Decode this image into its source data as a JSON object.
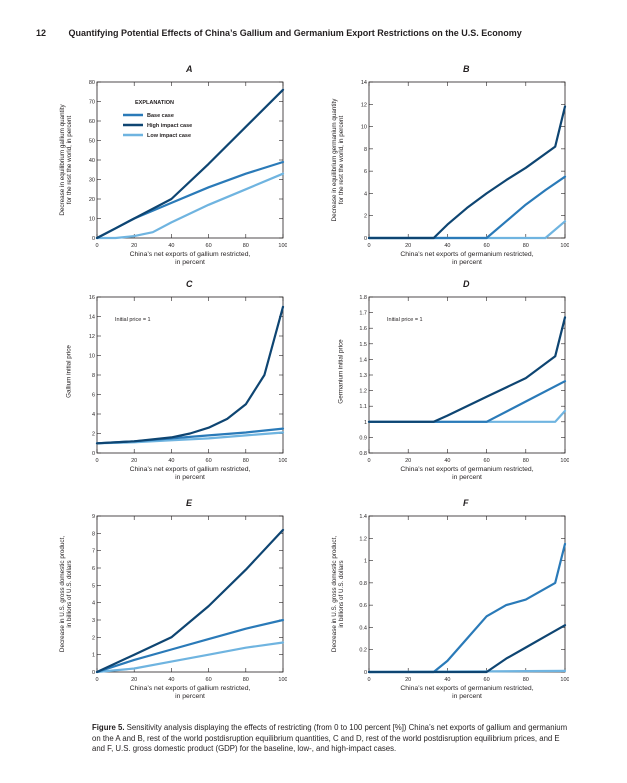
{
  "header": {
    "page_number": "12",
    "title": "Quantifying Potential Effects of China’s Gallium and Germanium Export Restrictions on the U.S. Economy"
  },
  "colors": {
    "base": "#2a7ab8",
    "high": "#0e4572",
    "low": "#6fb4e0"
  },
  "legend": {
    "title": "EXPLANATION",
    "items": [
      "Base case",
      "High impact case",
      "Low impact case"
    ]
  },
  "panels": {
    "A": {
      "letter": "A",
      "ylabel_lines": [
        "Decrease in equilibrium gallium quantity",
        "for the rest the world, in percent"
      ],
      "xlabel_lines": [
        "China’s net exports of gallium restricted,",
        "in percent"
      ]
    },
    "B": {
      "letter": "B",
      "ylabel_lines": [
        "Decrease in equilibrium germanium quantity",
        "for the rest the world, in percent"
      ],
      "xlabel_lines": [
        "China’s net exports of germanium restricted,",
        "in percent"
      ]
    },
    "C": {
      "letter": "C",
      "ylabel_lines": [
        "Gallium initial price"
      ],
      "xlabel_lines": [
        "China’s net exports of gallium restricted,",
        "in percent"
      ],
      "annotation": "Initial price = 1"
    },
    "D": {
      "letter": "D",
      "ylabel_lines": [
        "Germanium initial price"
      ],
      "xlabel_lines": [
        "China’s net exports of germanium restricted,",
        "in percent"
      ],
      "annotation": "Initial price = 1"
    },
    "E": {
      "letter": "E",
      "ylabel_lines": [
        "Decrease in U.S. gross domestic product,",
        "in billions of U.S. dollars"
      ],
      "xlabel_lines": [
        "China’s net exports of gallium restricted,",
        "in percent"
      ]
    },
    "F": {
      "letter": "F",
      "ylabel_lines": [
        "Decrease in U.S. gross domestic product,",
        "in billions of U.S. dollars"
      ],
      "xlabel_lines": [
        "China’s net exports of germanium restricted,",
        "in percent"
      ]
    }
  },
  "caption": {
    "label": "Figure 5.",
    "text": "Sensitivity analysis displaying the effects of restricting (from 0 to 100 percent [%]) China’s net exports of gallium and germanium on the A and B, rest of the world postdisruption equilibrium quantities, C and D, rest of the world postdisruption equilibrium prices, and E and F, U.S. gross domestic product (GDP) for the baseline, low-, and high-impact cases."
  },
  "chart_data": [
    {
      "panel": "A",
      "type": "line",
      "xlim": [
        0,
        100
      ],
      "ylim": [
        0,
        80
      ],
      "xticks": [
        0,
        20,
        40,
        60,
        80,
        100
      ],
      "yticks": [
        0,
        10,
        20,
        30,
        40,
        50,
        60,
        70,
        80
      ],
      "ytick_labels": [
        "0",
        "10",
        "20",
        "30",
        "40",
        "50",
        "60",
        "70",
        "80"
      ],
      "series": [
        {
          "name": "Base case",
          "color": "base",
          "x": [
            0,
            10,
            20,
            40,
            60,
            80,
            100
          ],
          "y": [
            0,
            5,
            10,
            18,
            26,
            33,
            39
          ]
        },
        {
          "name": "High impact case",
          "color": "high",
          "x": [
            0,
            10,
            20,
            40,
            60,
            80,
            100
          ],
          "y": [
            0,
            5,
            10,
            20,
            38,
            57,
            76
          ]
        },
        {
          "name": "Low impact case",
          "color": "low",
          "x": [
            0,
            10,
            20,
            30,
            40,
            60,
            80,
            100
          ],
          "y": [
            0,
            0,
            1,
            3,
            8,
            17,
            25,
            33
          ]
        }
      ]
    },
    {
      "panel": "B",
      "type": "line",
      "xlim": [
        0,
        100
      ],
      "ylim": [
        0,
        14
      ],
      "xticks": [
        0,
        20,
        40,
        60,
        80,
        100
      ],
      "yticks": [
        0,
        2,
        4,
        6,
        8,
        10,
        12,
        14
      ],
      "ytick_labels": [
        "0",
        "2",
        "4",
        "6",
        "8",
        "10",
        "12",
        "14"
      ],
      "series": [
        {
          "name": "Base case",
          "color": "base",
          "x": [
            0,
            60,
            70,
            80,
            90,
            100
          ],
          "y": [
            0,
            0,
            1.5,
            3,
            4.3,
            5.5
          ]
        },
        {
          "name": "High impact case",
          "color": "high",
          "x": [
            0,
            33,
            40,
            50,
            60,
            70,
            80,
            95,
            100
          ],
          "y": [
            0,
            0,
            1.2,
            2.7,
            4,
            5.2,
            6.3,
            8.2,
            11.8
          ]
        },
        {
          "name": "Low impact case",
          "color": "low",
          "x": [
            0,
            90,
            100
          ],
          "y": [
            0,
            0,
            1.5
          ]
        }
      ]
    },
    {
      "panel": "C",
      "type": "line",
      "xlim": [
        0,
        100
      ],
      "ylim": [
        0,
        16
      ],
      "xticks": [
        0,
        20,
        40,
        60,
        80,
        100
      ],
      "yticks": [
        0,
        2,
        4,
        6,
        8,
        10,
        12,
        14,
        16
      ],
      "ytick_labels": [
        "0",
        "2",
        "4",
        "6",
        "8",
        "10",
        "12",
        "14",
        "16"
      ],
      "series": [
        {
          "name": "Base case",
          "color": "base",
          "x": [
            0,
            20,
            40,
            60,
            80,
            100
          ],
          "y": [
            1,
            1.2,
            1.5,
            1.8,
            2.1,
            2.5
          ]
        },
        {
          "name": "High impact case",
          "color": "high",
          "x": [
            0,
            20,
            40,
            50,
            60,
            70,
            80,
            90,
            100
          ],
          "y": [
            1,
            1.2,
            1.6,
            2,
            2.6,
            3.5,
            5,
            8,
            15
          ]
        },
        {
          "name": "Low impact case",
          "color": "low",
          "x": [
            0,
            20,
            40,
            60,
            80,
            100
          ],
          "y": [
            1,
            1.1,
            1.3,
            1.5,
            1.8,
            2.1
          ]
        }
      ]
    },
    {
      "panel": "D",
      "type": "line",
      "xlim": [
        0,
        100
      ],
      "ylim": [
        0.8,
        1.8
      ],
      "xticks": [
        0,
        20,
        40,
        60,
        80,
        100
      ],
      "yticks": [
        0.8,
        0.9,
        1.0,
        1.1,
        1.2,
        1.3,
        1.4,
        1.5,
        1.6,
        1.7,
        1.8
      ],
      "ytick_labels": [
        "0.8",
        "0.9",
        "1",
        "1.1",
        "1.2",
        "1.3",
        "1.4",
        "1.5",
        "1.6",
        "1.7",
        "1.8"
      ],
      "series": [
        {
          "name": "Base case",
          "color": "base",
          "x": [
            0,
            60,
            80,
            100
          ],
          "y": [
            1,
            1,
            1.13,
            1.26
          ]
        },
        {
          "name": "High impact case",
          "color": "high",
          "x": [
            0,
            33,
            40,
            60,
            80,
            95,
            100
          ],
          "y": [
            1,
            1,
            1.04,
            1.16,
            1.28,
            1.42,
            1.67
          ]
        },
        {
          "name": "Low impact case",
          "color": "low",
          "x": [
            0,
            95,
            100
          ],
          "y": [
            1,
            1,
            1.07
          ]
        }
      ]
    },
    {
      "panel": "E",
      "type": "line",
      "xlim": [
        0,
        100
      ],
      "ylim": [
        0,
        9
      ],
      "xticks": [
        0,
        20,
        40,
        60,
        80,
        100
      ],
      "yticks": [
        0,
        1,
        2,
        3,
        4,
        5,
        6,
        7,
        8,
        9
      ],
      "ytick_labels": [
        "0",
        "1",
        "2",
        "3",
        "4",
        "5",
        "6",
        "7",
        "8",
        "9"
      ],
      "series": [
        {
          "name": "Base case",
          "color": "base",
          "x": [
            0,
            20,
            40,
            60,
            80,
            100
          ],
          "y": [
            0,
            0.7,
            1.3,
            1.9,
            2.5,
            3
          ]
        },
        {
          "name": "High impact case",
          "color": "high",
          "x": [
            0,
            20,
            40,
            60,
            80,
            100
          ],
          "y": [
            0,
            1,
            2,
            3.8,
            5.9,
            8.2
          ]
        },
        {
          "name": "Low impact case",
          "color": "low",
          "x": [
            0,
            20,
            40,
            60,
            80,
            100
          ],
          "y": [
            0,
            0.2,
            0.6,
            1,
            1.4,
            1.7
          ]
        }
      ]
    },
    {
      "panel": "F",
      "type": "line",
      "xlim": [
        0,
        100
      ],
      "ylim": [
        0,
        1.4
      ],
      "xticks": [
        0,
        20,
        40,
        60,
        80,
        100
      ],
      "yticks": [
        0,
        0.2,
        0.4,
        0.6,
        0.8,
        1.0,
        1.2,
        1.4
      ],
      "ytick_labels": [
        "0",
        "0.2",
        "0.4",
        "0.6",
        "0.8",
        "1",
        "1.2",
        "1.4"
      ],
      "series": [
        {
          "name": "Base case",
          "color": "base",
          "x": [
            0,
            33,
            40,
            50,
            60,
            70,
            80,
            95,
            100
          ],
          "y": [
            0,
            0,
            0.1,
            0.3,
            0.5,
            0.6,
            0.65,
            0.8,
            1.15
          ]
        },
        {
          "name": "High impact case",
          "color": "high",
          "x": [
            0,
            60,
            70,
            80,
            90,
            100
          ],
          "y": [
            0,
            0,
            0.12,
            0.22,
            0.32,
            0.42
          ]
        },
        {
          "name": "Low impact case",
          "color": "low",
          "x": [
            0,
            100
          ],
          "y": [
            0,
            0.01
          ]
        }
      ]
    }
  ]
}
